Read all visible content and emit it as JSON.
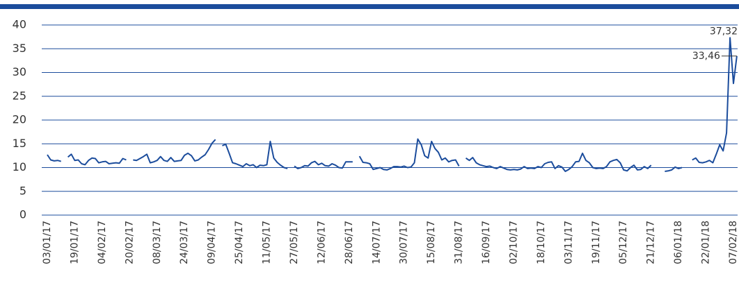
{
  "chart_data": {
    "type": "line",
    "categories": [
      "03/01/17",
      null,
      null,
      null,
      null,
      null,
      null,
      null,
      "19/01/17",
      null,
      null,
      null,
      null,
      null,
      null,
      null,
      "04/02/17",
      null,
      null,
      null,
      null,
      null,
      null,
      null,
      "20/02/17",
      null,
      null,
      null,
      null,
      null,
      null,
      null,
      "08/03/17",
      null,
      null,
      null,
      null,
      null,
      null,
      null,
      "24/03/17",
      null,
      null,
      null,
      null,
      null,
      null,
      null,
      "09/04/17",
      null,
      null,
      null,
      null,
      null,
      null,
      null,
      "25/04/17",
      null,
      null,
      null,
      null,
      null,
      null,
      null,
      "11/05/17",
      null,
      null,
      null,
      null,
      null,
      null,
      null,
      "27/05/17",
      null,
      null,
      null,
      null,
      null,
      null,
      null,
      "12/06/17",
      null,
      null,
      null,
      null,
      null,
      null,
      null,
      "28/06/17",
      null,
      null,
      null,
      null,
      null,
      null,
      null,
      "14/07/17",
      null,
      null,
      null,
      null,
      null,
      null,
      null,
      "30/07/17",
      null,
      null,
      null,
      null,
      null,
      null,
      null,
      "15/08/17",
      null,
      null,
      null,
      null,
      null,
      null,
      null,
      "31/08/17",
      null,
      null,
      null,
      null,
      null,
      null,
      null,
      "16/09/17",
      null,
      null,
      null,
      null,
      null,
      null,
      null,
      "02/10/17",
      null,
      null,
      null,
      null,
      null,
      null,
      null,
      "18/10/17",
      null,
      null,
      null,
      null,
      null,
      null,
      null,
      "03/11/17",
      null,
      null,
      null,
      null,
      null,
      null,
      null,
      "19/11/17",
      null,
      null,
      null,
      null,
      null,
      null,
      null,
      "05/12/17",
      null,
      null,
      null,
      null,
      null,
      null,
      null,
      "21/12/17",
      null,
      null,
      null,
      null,
      null,
      null,
      null,
      "06/01/18",
      null,
      null,
      null,
      null,
      null,
      null,
      null,
      "22/01/18",
      null,
      null,
      null,
      null,
      null,
      null,
      null,
      "07/02/18",
      null
    ],
    "series": [
      {
        "color": "#1b4c9c",
        "values": [
          12.7,
          11.6,
          11.4,
          11.5,
          11.3,
          null,
          12.2,
          12.8,
          11.5,
          11.6,
          10.8,
          10.6,
          11.5,
          12.0,
          11.9,
          11.0,
          11.2,
          11.3,
          10.8,
          10.9,
          11.0,
          10.9,
          11.9,
          11.6,
          null,
          11.6,
          11.5,
          11.9,
          12.3,
          12.8,
          11.0,
          11.2,
          11.5,
          12.3,
          11.5,
          11.3,
          12.1,
          11.3,
          11.4,
          11.5,
          12.6,
          13.0,
          12.5,
          11.4,
          11.6,
          12.2,
          12.7,
          13.8,
          15.1,
          15.9,
          null,
          14.6,
          14.9,
          13.0,
          11.0,
          10.8,
          10.5,
          10.2,
          10.8,
          10.4,
          10.6,
          10.0,
          10.5,
          10.4,
          10.6,
          15.5,
          12.0,
          11.1,
          10.5,
          10.0,
          9.8,
          null,
          10.3,
          9.8,
          10.0,
          10.4,
          10.3,
          11.0,
          11.3,
          10.6,
          10.9,
          10.4,
          10.3,
          10.8,
          10.5,
          10.0,
          9.9,
          11.2,
          11.2,
          11.2,
          null,
          12.4,
          11.1,
          11.0,
          10.8,
          9.6,
          9.8,
          10.0,
          9.6,
          9.5,
          9.8,
          10.2,
          10.2,
          10.1,
          10.3,
          10.0,
          10.1,
          11.0,
          16.0,
          14.8,
          12.5,
          12.0,
          15.5,
          14.0,
          13.2,
          11.6,
          12.0,
          11.2,
          11.5,
          11.6,
          10.3,
          null,
          12.0,
          11.5,
          12.1,
          11.0,
          10.6,
          10.4,
          10.2,
          10.3,
          10.0,
          9.8,
          10.2,
          9.9,
          9.6,
          9.5,
          9.6,
          9.5,
          9.7,
          10.2,
          9.8,
          9.9,
          9.8,
          10.2,
          10.0,
          10.8,
          11.1,
          11.2,
          9.8,
          10.4,
          10.1,
          9.2,
          9.6,
          10.2,
          11.2,
          11.3,
          13.0,
          11.5,
          11.0,
          10.0,
          9.8,
          9.9,
          9.8,
          10.2,
          11.2,
          11.5,
          11.7,
          11.0,
          9.5,
          9.3,
          10.0,
          10.5,
          9.5,
          9.6,
          10.2,
          9.8,
          10.5,
          null,
          10.9,
          null,
          9.2,
          9.3,
          9.5,
          10.1,
          9.8,
          10.0,
          null,
          null,
          11.6,
          12.0,
          11.1,
          11.0,
          11.2,
          11.5,
          11.0,
          12.8,
          14.8,
          13.5,
          17.3,
          37.32,
          27.7,
          33.46
        ],
        "value_labels": [
          null,
          null,
          null,
          null,
          null,
          null,
          null,
          null,
          null,
          null,
          null,
          null,
          null,
          null,
          null,
          null,
          null,
          null,
          null,
          null,
          null,
          null,
          null,
          null,
          null,
          null,
          null,
          null,
          null,
          null,
          null,
          null,
          null,
          null,
          null,
          null,
          null,
          null,
          null,
          null,
          null,
          null,
          null,
          null,
          null,
          null,
          null,
          null,
          null,
          null,
          null,
          null,
          null,
          null,
          null,
          null,
          null,
          null,
          null,
          null,
          null,
          null,
          null,
          null,
          null,
          null,
          null,
          null,
          null,
          null,
          null,
          null,
          null,
          null,
          null,
          null,
          null,
          null,
          null,
          null,
          null,
          null,
          null,
          null,
          null,
          null,
          null,
          null,
          null,
          null,
          null,
          null,
          null,
          null,
          null,
          null,
          null,
          null,
          null,
          null,
          null,
          null,
          null,
          null,
          null,
          null,
          null,
          null,
          null,
          null,
          null,
          null,
          null,
          null,
          null,
          null,
          null,
          null,
          null,
          null,
          null,
          null,
          null,
          null,
          null,
          null,
          null,
          null,
          null,
          null,
          null,
          null,
          null,
          null,
          null,
          null,
          null,
          null,
          null,
          null,
          null,
          null,
          null,
          null,
          null,
          null,
          null,
          null,
          null,
          null,
          null,
          null,
          null,
          null,
          null,
          null,
          null,
          null,
          null,
          null,
          null,
          null,
          null,
          null,
          null,
          null,
          null,
          null,
          null,
          null,
          null,
          null,
          null,
          null,
          null,
          null,
          null,
          null,
          null,
          null,
          null,
          null,
          null,
          null,
          null,
          null,
          null,
          null,
          null,
          null,
          null,
          null,
          null,
          null,
          null,
          null,
          null,
          null,
          null,
          "37,32",
          null,
          "33,46"
        ]
      }
    ],
    "ylim": [
      0,
      40
    ],
    "yticks": [
      0,
      5,
      10,
      15,
      20,
      25,
      30,
      35,
      40
    ],
    "grid": true
  }
}
